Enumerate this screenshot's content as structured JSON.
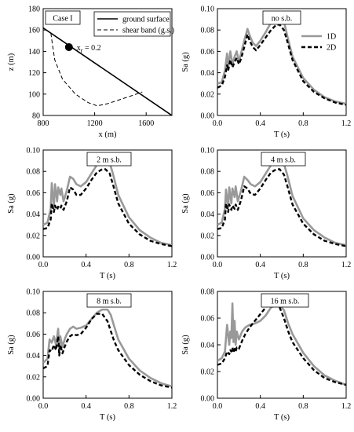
{
  "chart_data": [
    {
      "type": "line",
      "annotation": "Case I",
      "xlabel": "x (m)",
      "ylabel": "z (m)",
      "xlim": [
        800,
        1800
      ],
      "ylim": [
        80,
        180
      ],
      "xticks": [
        800,
        1200,
        1600
      ],
      "yticks": [
        80,
        100,
        120,
        140,
        160,
        180
      ],
      "legend_position": "top-right",
      "point": {
        "x": 1000,
        "y": 144,
        "label": "x",
        "label_sub": "r",
        "label_suffix": " = 0.2"
      },
      "series": [
        {
          "name": "ground surface",
          "style": "solid",
          "color": "#000000",
          "x": [
            800,
            1800
          ],
          "y": [
            162,
            80
          ]
        },
        {
          "name": "shear band (g.s.)",
          "style": "dashed",
          "color": "#000000",
          "x": [
            860,
            870,
            890,
            950,
            1050,
            1150,
            1220,
            1300,
            1400,
            1500,
            1570
          ],
          "y": [
            157,
            148,
            132,
            114,
            100,
            92,
            89,
            91,
            95,
            99,
            102
          ]
        }
      ]
    },
    {
      "type": "line",
      "annotation": "no s.b.",
      "xlabel": "T (s)",
      "ylabel": "Sa (g)",
      "xlim": [
        0,
        1.2
      ],
      "ylim": [
        0,
        0.1
      ],
      "xticks": [
        0.0,
        0.4,
        0.8,
        1.2
      ],
      "yticks": [
        0.0,
        0.02,
        0.04,
        0.06,
        0.08,
        0.1
      ],
      "legend_position": "top-right",
      "series": [
        {
          "name": "1D",
          "style": "solid",
          "color": "#999999",
          "x": [
            0,
            0.04,
            0.07,
            0.09,
            0.1,
            0.12,
            0.14,
            0.16,
            0.18,
            0.2,
            0.22,
            0.25,
            0.28,
            0.3,
            0.33,
            0.36,
            0.4,
            0.45,
            0.5,
            0.55,
            0.58,
            0.62,
            0.65,
            0.7,
            0.8,
            0.9,
            1.0,
            1.1,
            1.2
          ],
          "y": [
            0.03,
            0.031,
            0.042,
            0.058,
            0.045,
            0.06,
            0.048,
            0.055,
            0.06,
            0.05,
            0.058,
            0.07,
            0.081,
            0.075,
            0.068,
            0.065,
            0.07,
            0.078,
            0.087,
            0.091,
            0.093,
            0.088,
            0.075,
            0.055,
            0.035,
            0.024,
            0.017,
            0.013,
            0.011
          ]
        },
        {
          "name": "2D",
          "style": "dashed",
          "color": "#000000",
          "x": [
            0,
            0.04,
            0.07,
            0.09,
            0.1,
            0.12,
            0.14,
            0.16,
            0.18,
            0.2,
            0.22,
            0.25,
            0.28,
            0.3,
            0.33,
            0.36,
            0.4,
            0.45,
            0.5,
            0.55,
            0.58,
            0.62,
            0.65,
            0.7,
            0.8,
            0.9,
            1.0,
            1.1,
            1.2
          ],
          "y": [
            0.026,
            0.028,
            0.036,
            0.047,
            0.042,
            0.052,
            0.045,
            0.05,
            0.054,
            0.048,
            0.053,
            0.064,
            0.076,
            0.07,
            0.064,
            0.061,
            0.066,
            0.073,
            0.08,
            0.085,
            0.085,
            0.08,
            0.07,
            0.052,
            0.032,
            0.022,
            0.016,
            0.012,
            0.01
          ]
        }
      ]
    },
    {
      "type": "line",
      "annotation": "2 m s.b.",
      "xlabel": "T (s)",
      "ylabel": "Sa (g)",
      "xlim": [
        0,
        1.2
      ],
      "ylim": [
        0,
        0.1
      ],
      "xticks": [
        0.0,
        0.4,
        0.8,
        1.2
      ],
      "yticks": [
        0.0,
        0.02,
        0.04,
        0.06,
        0.08,
        0.1
      ],
      "series": [
        {
          "name": "1D",
          "style": "solid",
          "color": "#999999",
          "x": [
            0,
            0.04,
            0.07,
            0.08,
            0.1,
            0.11,
            0.13,
            0.14,
            0.16,
            0.17,
            0.19,
            0.22,
            0.25,
            0.28,
            0.31,
            0.35,
            0.4,
            0.45,
            0.5,
            0.55,
            0.58,
            0.62,
            0.65,
            0.7,
            0.8,
            0.9,
            1.0,
            1.1,
            1.2
          ],
          "y": [
            0.03,
            0.032,
            0.045,
            0.069,
            0.046,
            0.068,
            0.052,
            0.065,
            0.058,
            0.064,
            0.052,
            0.062,
            0.075,
            0.073,
            0.068,
            0.066,
            0.07,
            0.078,
            0.086,
            0.091,
            0.092,
            0.088,
            0.078,
            0.058,
            0.037,
            0.025,
            0.018,
            0.013,
            0.011
          ]
        },
        {
          "name": "2D",
          "style": "dashed",
          "color": "#000000",
          "x": [
            0,
            0.04,
            0.07,
            0.08,
            0.1,
            0.11,
            0.13,
            0.14,
            0.16,
            0.17,
            0.19,
            0.22,
            0.25,
            0.28,
            0.31,
            0.35,
            0.4,
            0.45,
            0.5,
            0.55,
            0.58,
            0.62,
            0.65,
            0.7,
            0.8,
            0.9,
            1.0,
            1.1,
            1.2
          ],
          "y": [
            0.026,
            0.027,
            0.035,
            0.05,
            0.042,
            0.048,
            0.044,
            0.047,
            0.045,
            0.048,
            0.044,
            0.052,
            0.065,
            0.063,
            0.058,
            0.058,
            0.064,
            0.072,
            0.079,
            0.082,
            0.082,
            0.078,
            0.068,
            0.05,
            0.031,
            0.021,
            0.015,
            0.012,
            0.01
          ]
        }
      ]
    },
    {
      "type": "line",
      "annotation": "4 m s.b.",
      "xlabel": "T (s)",
      "ylabel": "Sa (g)",
      "xlim": [
        0,
        1.2
      ],
      "ylim": [
        0,
        0.1
      ],
      "xticks": [
        0.0,
        0.4,
        0.8,
        1.2
      ],
      "yticks": [
        0.0,
        0.02,
        0.04,
        0.06,
        0.08,
        0.1
      ],
      "series": [
        {
          "name": "1D",
          "style": "solid",
          "color": "#999999",
          "x": [
            0,
            0.04,
            0.07,
            0.08,
            0.1,
            0.11,
            0.13,
            0.14,
            0.16,
            0.17,
            0.19,
            0.22,
            0.25,
            0.28,
            0.31,
            0.35,
            0.4,
            0.45,
            0.5,
            0.55,
            0.58,
            0.62,
            0.65,
            0.7,
            0.8,
            0.9,
            1.0,
            1.1,
            1.2
          ],
          "y": [
            0.03,
            0.032,
            0.045,
            0.063,
            0.046,
            0.065,
            0.05,
            0.064,
            0.056,
            0.066,
            0.052,
            0.062,
            0.075,
            0.072,
            0.068,
            0.066,
            0.07,
            0.078,
            0.086,
            0.09,
            0.091,
            0.087,
            0.077,
            0.057,
            0.036,
            0.025,
            0.018,
            0.013,
            0.011
          ]
        },
        {
          "name": "2D",
          "style": "dashed",
          "color": "#000000",
          "x": [
            0,
            0.04,
            0.07,
            0.08,
            0.1,
            0.11,
            0.13,
            0.14,
            0.16,
            0.17,
            0.19,
            0.22,
            0.25,
            0.28,
            0.31,
            0.35,
            0.4,
            0.45,
            0.5,
            0.55,
            0.58,
            0.62,
            0.65,
            0.7,
            0.8,
            0.9,
            1.0,
            1.1,
            1.2
          ],
          "y": [
            0.026,
            0.027,
            0.035,
            0.05,
            0.042,
            0.049,
            0.044,
            0.048,
            0.045,
            0.049,
            0.044,
            0.053,
            0.066,
            0.064,
            0.059,
            0.058,
            0.064,
            0.072,
            0.079,
            0.082,
            0.082,
            0.077,
            0.067,
            0.049,
            0.031,
            0.021,
            0.015,
            0.012,
            0.01
          ]
        }
      ]
    },
    {
      "type": "line",
      "annotation": "8 m s.b.",
      "xlabel": "T (s)",
      "ylabel": "Sa (g)",
      "xlim": [
        0,
        1.2
      ],
      "ylim": [
        0,
        0.1
      ],
      "xticks": [
        0.0,
        0.4,
        0.8,
        1.2
      ],
      "yticks": [
        0.0,
        0.02,
        0.04,
        0.06,
        0.08,
        0.1
      ],
      "series": [
        {
          "name": "1D",
          "style": "solid",
          "color": "#999999",
          "x": [
            0,
            0.04,
            0.06,
            0.08,
            0.1,
            0.12,
            0.14,
            0.15,
            0.16,
            0.18,
            0.2,
            0.22,
            0.25,
            0.28,
            0.31,
            0.35,
            0.4,
            0.45,
            0.5,
            0.55,
            0.6,
            0.63,
            0.66,
            0.7,
            0.8,
            0.9,
            1.0,
            1.1,
            1.2
          ],
          "y": [
            0.033,
            0.037,
            0.055,
            0.052,
            0.058,
            0.05,
            0.065,
            0.045,
            0.058,
            0.048,
            0.055,
            0.06,
            0.065,
            0.067,
            0.065,
            0.066,
            0.068,
            0.074,
            0.08,
            0.083,
            0.083,
            0.078,
            0.068,
            0.055,
            0.037,
            0.026,
            0.019,
            0.014,
            0.011
          ]
        },
        {
          "name": "2D",
          "style": "dashed",
          "color": "#000000",
          "x": [
            0,
            0.04,
            0.06,
            0.08,
            0.1,
            0.12,
            0.14,
            0.15,
            0.16,
            0.18,
            0.2,
            0.22,
            0.25,
            0.28,
            0.31,
            0.35,
            0.4,
            0.45,
            0.5,
            0.55,
            0.6,
            0.63,
            0.66,
            0.7,
            0.8,
            0.9,
            1.0,
            1.1,
            1.2
          ],
          "y": [
            0.028,
            0.03,
            0.045,
            0.044,
            0.05,
            0.045,
            0.058,
            0.04,
            0.05,
            0.042,
            0.048,
            0.053,
            0.058,
            0.06,
            0.059,
            0.06,
            0.066,
            0.074,
            0.079,
            0.079,
            0.072,
            0.063,
            0.054,
            0.045,
            0.031,
            0.022,
            0.016,
            0.012,
            0.01
          ]
        }
      ]
    },
    {
      "type": "line",
      "annotation": "16 m s.b.",
      "xlabel": "T (s)",
      "ylabel": "Sa (g)",
      "xlim": [
        0,
        1.2
      ],
      "ylim": [
        0,
        0.08
      ],
      "xticks": [
        0.0,
        0.4,
        0.8,
        1.2
      ],
      "yticks": [
        0.0,
        0.02,
        0.04,
        0.06,
        0.08
      ],
      "series": [
        {
          "name": "1D",
          "style": "solid",
          "color": "#999999",
          "x": [
            0,
            0.04,
            0.07,
            0.09,
            0.11,
            0.12,
            0.13,
            0.14,
            0.15,
            0.16,
            0.17,
            0.18,
            0.2,
            0.23,
            0.26,
            0.3,
            0.35,
            0.4,
            0.45,
            0.5,
            0.55,
            0.58,
            0.62,
            0.66,
            0.7,
            0.8,
            0.9,
            1.0,
            1.1,
            1.2
          ],
          "y": [
            0.028,
            0.03,
            0.035,
            0.055,
            0.04,
            0.05,
            0.045,
            0.071,
            0.042,
            0.058,
            0.04,
            0.05,
            0.044,
            0.05,
            0.053,
            0.055,
            0.056,
            0.058,
            0.062,
            0.068,
            0.07,
            0.07,
            0.066,
            0.056,
            0.048,
            0.034,
            0.024,
            0.017,
            0.013,
            0.01
          ]
        },
        {
          "name": "2D",
          "style": "dashed",
          "color": "#000000",
          "x": [
            0,
            0.04,
            0.07,
            0.09,
            0.11,
            0.12,
            0.13,
            0.14,
            0.15,
            0.16,
            0.17,
            0.18,
            0.2,
            0.23,
            0.26,
            0.3,
            0.35,
            0.4,
            0.45,
            0.5,
            0.55,
            0.58,
            0.62,
            0.66,
            0.7,
            0.8,
            0.9,
            1.0,
            1.1,
            1.2
          ],
          "y": [
            0.025,
            0.026,
            0.03,
            0.035,
            0.033,
            0.036,
            0.035,
            0.038,
            0.034,
            0.037,
            0.035,
            0.038,
            0.037,
            0.043,
            0.048,
            0.053,
            0.058,
            0.063,
            0.068,
            0.073,
            0.071,
            0.068,
            0.06,
            0.05,
            0.042,
            0.03,
            0.021,
            0.015,
            0.012,
            0.01
          ]
        }
      ]
    }
  ]
}
